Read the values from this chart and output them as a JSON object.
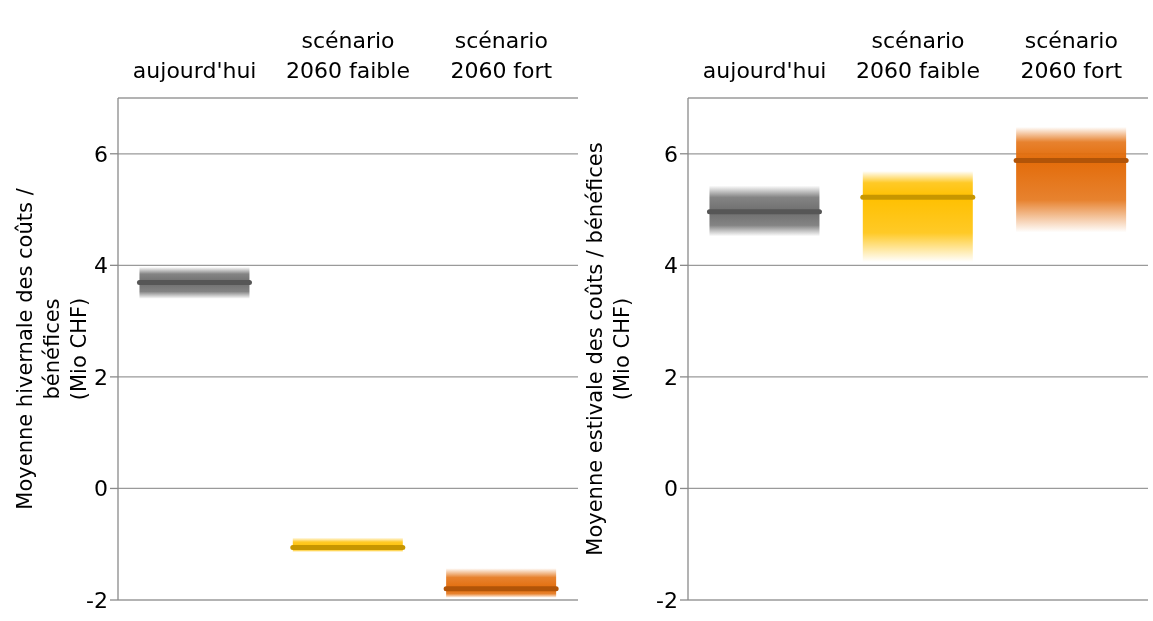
{
  "chart_data": [
    {
      "type": "box",
      "categories": [
        "aujourd'hui",
        "scénario 2060 faible",
        "scénario 2060 fort"
      ],
      "ylabel": "Moyenne hivernale des coûts / bénéfices (Mio CHF)",
      "ylim": [
        -2,
        7
      ],
      "yticks": [
        -2,
        0,
        2,
        4,
        6
      ],
      "grid": "y",
      "colors": [
        "#6e6e6e",
        "#ffc000",
        "#e36c0a"
      ],
      "boxes": [
        {
          "low": 3.4,
          "q1": 3.4,
          "median": 3.69,
          "q3": 3.97,
          "high": 3.97
        },
        {
          "low": -1.14,
          "q1": -1.14,
          "median": -1.06,
          "q3": -0.88,
          "high": -0.88
        },
        {
          "low": -1.96,
          "q1": -1.96,
          "median": -1.8,
          "q3": -1.43,
          "high": -1.43
        }
      ]
    },
    {
      "type": "box",
      "categories": [
        "aujourd'hui",
        "scénario 2060 faible",
        "scénario 2060 fort"
      ],
      "ylabel": "Moyenne estivale des coûts / bénéfices (Mio CHF)",
      "ylim": [
        -2,
        7
      ],
      "yticks": [
        -2,
        0,
        2,
        4,
        6
      ],
      "grid": "y",
      "colors": [
        "#6e6e6e",
        "#ffc000",
        "#e36c0a"
      ],
      "boxes": [
        {
          "low": 4.52,
          "q1": 4.52,
          "median": 4.96,
          "q3": 5.43,
          "high": 5.43
        },
        {
          "low": 4.06,
          "q1": 4.06,
          "median": 5.22,
          "q3": 5.69,
          "high": 5.69
        },
        {
          "low": 4.59,
          "q1": 4.59,
          "median": 5.88,
          "q3": 6.48,
          "high": 6.48
        }
      ]
    }
  ]
}
